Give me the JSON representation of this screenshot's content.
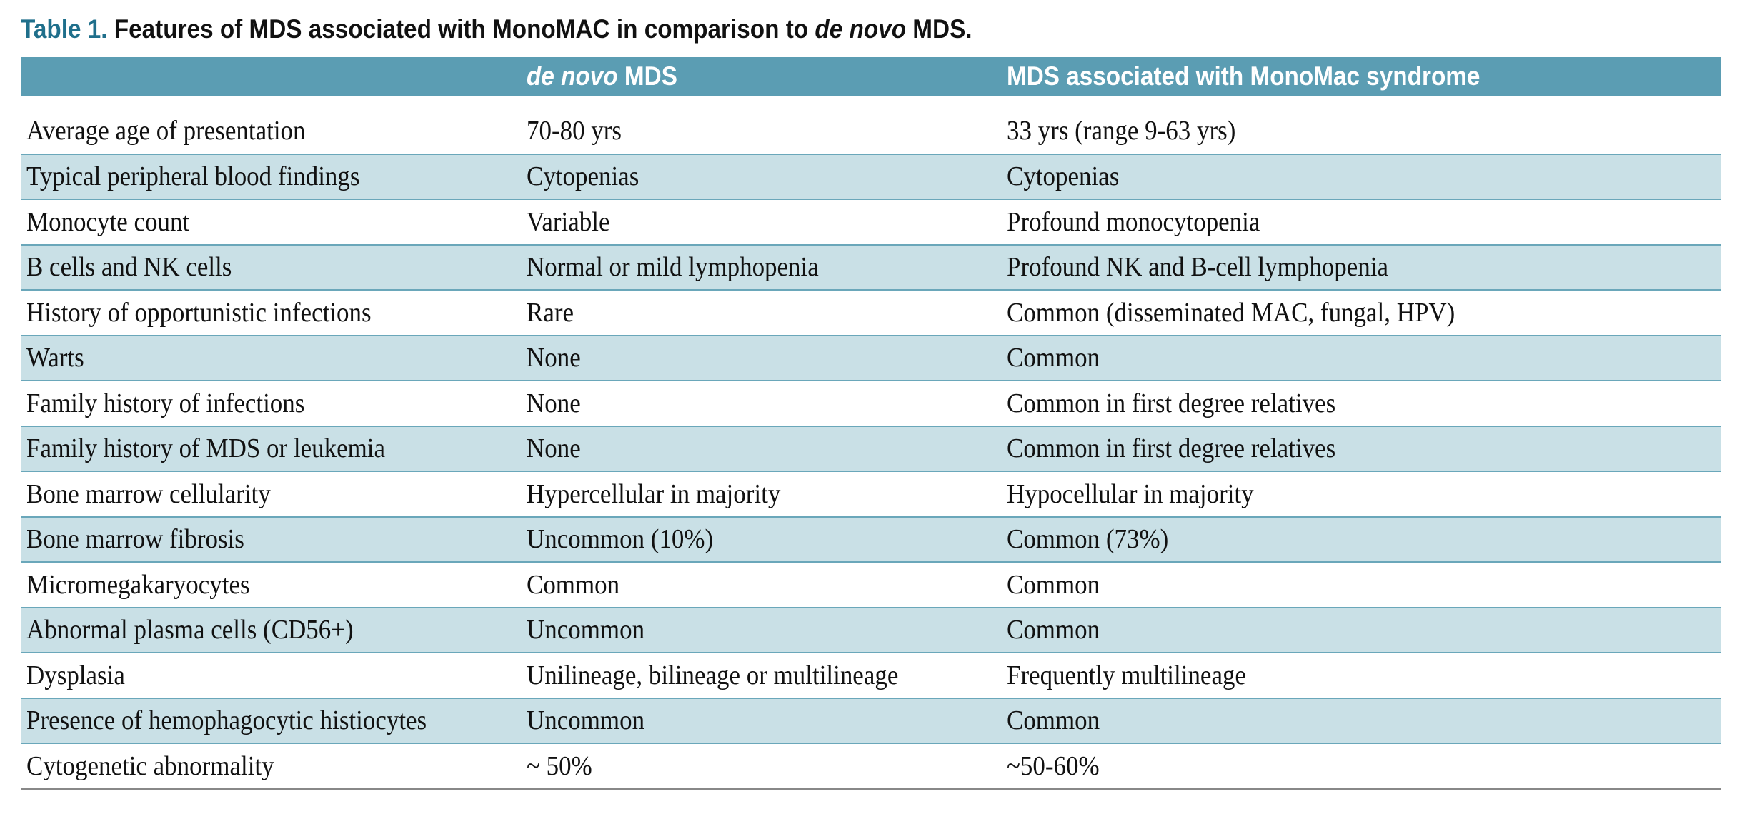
{
  "caption": {
    "label": "Table 1.",
    "text_before": "Features of MDS associated with MonoMAC in comparison to",
    "text_italic": "de novo",
    "text_after": "MDS."
  },
  "table": {
    "columns": [
      {
        "italic": "",
        "text": ""
      },
      {
        "italic": "de novo",
        "text": "MDS"
      },
      {
        "italic": "",
        "text": "MDS associated with MonoMac syndrome"
      }
    ],
    "rows": [
      {
        "feature": "Average age of presentation",
        "de_novo": "70-80 yrs",
        "monomac": "33 yrs (range 9-63 yrs)"
      },
      {
        "feature": "Typical peripheral blood findings",
        "de_novo": "Cytopenias",
        "monomac": "Cytopenias"
      },
      {
        "feature": "Monocyte count",
        "de_novo": "Variable",
        "monomac": "Profound monocytopenia"
      },
      {
        "feature": "B cells and NK cells",
        "de_novo": "Normal or mild lymphopenia",
        "monomac": "Profound NK and B-cell lymphopenia"
      },
      {
        "feature": "History of opportunistic infections",
        "de_novo": "Rare",
        "monomac": "Common (disseminated MAC, fungal, HPV)"
      },
      {
        "feature": "Warts",
        "de_novo": "None",
        "monomac": "Common"
      },
      {
        "feature": "Family history of infections",
        "de_novo": "None",
        "monomac": "Common in first degree relatives"
      },
      {
        "feature": "Family history of MDS or leukemia",
        "de_novo": "None",
        "monomac": "Common in first degree relatives"
      },
      {
        "feature": "Bone marrow cellularity",
        "de_novo": "Hypercellular in majority",
        "monomac": "Hypocellular in majority"
      },
      {
        "feature": "Bone marrow fibrosis",
        "de_novo": "Uncommon (10%)",
        "monomac": "Common (73%)"
      },
      {
        "feature": "Micromegakaryocytes",
        "de_novo": "Common",
        "monomac": "Common"
      },
      {
        "feature": "Abnormal plasma cells (CD56+)",
        "de_novo": "Uncommon",
        "monomac": "Common"
      },
      {
        "feature": "Dysplasia",
        "de_novo": "Unilineage, bilineage or multilineage",
        "monomac": "Frequently multilineage"
      },
      {
        "feature": "Presence of hemophagocytic histiocytes",
        "de_novo": "Uncommon",
        "monomac": "Common"
      },
      {
        "feature": "Cytogenetic abnormality",
        "de_novo": "~ 50%",
        "monomac": "~50-60%"
      }
    ]
  },
  "colors": {
    "header_bg": "#5b9db3",
    "shaded_row_bg": "#c9e0e6",
    "caption_label": "#1f6f8b"
  }
}
